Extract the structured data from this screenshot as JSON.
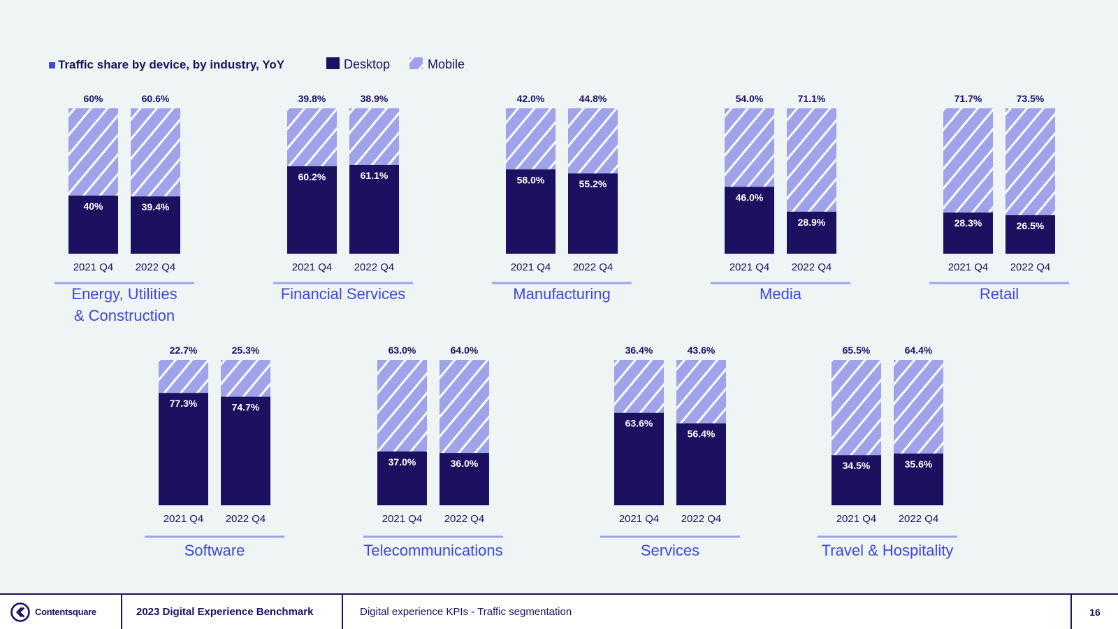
{
  "legend": {
    "title": "Traffic share by device, by industry, YoY",
    "desktop_label": "Desktop",
    "mobile_label": "Mobile"
  },
  "colors": {
    "desktop": "#1B1160",
    "mobile": "#A0A3EA",
    "stripe": "#FFFFFF",
    "accent": "#3F47D6"
  },
  "chart_data": {
    "type": "bar",
    "stacked": true,
    "title": "Traffic share by device, by industry, YoY",
    "categories": [
      "2021 Q4",
      "2022 Q4"
    ],
    "series_names": [
      "Desktop",
      "Mobile"
    ],
    "ylim": [
      0,
      100
    ],
    "panels": [
      {
        "industry": "Energy, Utilities & Construction",
        "industry_lines": [
          "Energy, Utilities",
          "& Construction"
        ],
        "bars": [
          {
            "period": "2021 Q4",
            "desktop": 40,
            "mobile": 60,
            "desktop_label": "40%",
            "mobile_label": "60%"
          },
          {
            "period": "2022 Q4",
            "desktop": 39.4,
            "mobile": 60.6,
            "desktop_label": "39.4%",
            "mobile_label": "60.6%"
          }
        ]
      },
      {
        "industry": "Financial Services",
        "industry_lines": [
          "Financial Services"
        ],
        "bars": [
          {
            "period": "2021 Q4",
            "desktop": 60.2,
            "mobile": 39.8,
            "desktop_label": "60.2%",
            "mobile_label": "39.8%"
          },
          {
            "period": "2022 Q4",
            "desktop": 61.1,
            "mobile": 38.9,
            "desktop_label": "61.1%",
            "mobile_label": "38.9%"
          }
        ]
      },
      {
        "industry": "Manufacturing",
        "industry_lines": [
          "Manufacturing"
        ],
        "bars": [
          {
            "period": "2021 Q4",
            "desktop": 58.0,
            "mobile": 42.0,
            "desktop_label": "58.0%",
            "mobile_label": "42.0%"
          },
          {
            "period": "2022 Q4",
            "desktop": 55.2,
            "mobile": 44.8,
            "desktop_label": "55.2%",
            "mobile_label": "44.8%"
          }
        ]
      },
      {
        "industry": "Media",
        "industry_lines": [
          "Media"
        ],
        "bars": [
          {
            "period": "2021 Q4",
            "desktop": 46.0,
            "mobile": 54.0,
            "desktop_label": "46.0%",
            "mobile_label": "54.0%"
          },
          {
            "period": "2022 Q4",
            "desktop": 28.9,
            "mobile": 71.1,
            "desktop_label": "28.9%",
            "mobile_label": "71.1%"
          }
        ]
      },
      {
        "industry": "Retail",
        "industry_lines": [
          "Retail"
        ],
        "bars": [
          {
            "period": "2021 Q4",
            "desktop": 28.3,
            "mobile": 71.7,
            "desktop_label": "28.3%",
            "mobile_label": "71.7%"
          },
          {
            "period": "2022 Q4",
            "desktop": 26.5,
            "mobile": 73.5,
            "desktop_label": "26.5%",
            "mobile_label": "73.5%"
          }
        ]
      },
      {
        "industry": "Software",
        "industry_lines": [
          "Software"
        ],
        "bars": [
          {
            "period": "2021 Q4",
            "desktop": 77.3,
            "mobile": 22.7,
            "desktop_label": "77.3%",
            "mobile_label": "22.7%"
          },
          {
            "period": "2022 Q4",
            "desktop": 74.7,
            "mobile": 25.3,
            "desktop_label": "74.7%",
            "mobile_label": "25.3%"
          }
        ]
      },
      {
        "industry": "Telecommunications",
        "industry_lines": [
          "Telecommunications"
        ],
        "bars": [
          {
            "period": "2021 Q4",
            "desktop": 37.0,
            "mobile": 63.0,
            "desktop_label": "37.0%",
            "mobile_label": "63.0%"
          },
          {
            "period": "2022 Q4",
            "desktop": 36.0,
            "mobile": 64.0,
            "desktop_label": "36.0%",
            "mobile_label": "64.0%"
          }
        ]
      },
      {
        "industry": "Services",
        "industry_lines": [
          "Services"
        ],
        "bars": [
          {
            "period": "2021 Q4",
            "desktop": 63.6,
            "mobile": 36.4,
            "desktop_label": "63.6%",
            "mobile_label": "36.4%"
          },
          {
            "period": "2022 Q4",
            "desktop": 56.4,
            "mobile": 43.6,
            "desktop_label": "56.4%",
            "mobile_label": "43.6%"
          }
        ]
      },
      {
        "industry": "Travel & Hospitality",
        "industry_lines": [
          "Travel & Hospitality"
        ],
        "bars": [
          {
            "period": "2021 Q4",
            "desktop": 34.5,
            "mobile": 65.5,
            "desktop_label": "34.5%",
            "mobile_label": "65.5%"
          },
          {
            "period": "2022 Q4",
            "desktop": 35.6,
            "mobile": 64.4,
            "desktop_label": "35.6%",
            "mobile_label": "64.4%"
          }
        ]
      }
    ]
  },
  "footer": {
    "brand": "Contentsquare",
    "report_title": "2023 Digital Experience Benchmark",
    "section": "Digital experience KPIs - Traffic segmentation",
    "page_number": "16"
  }
}
